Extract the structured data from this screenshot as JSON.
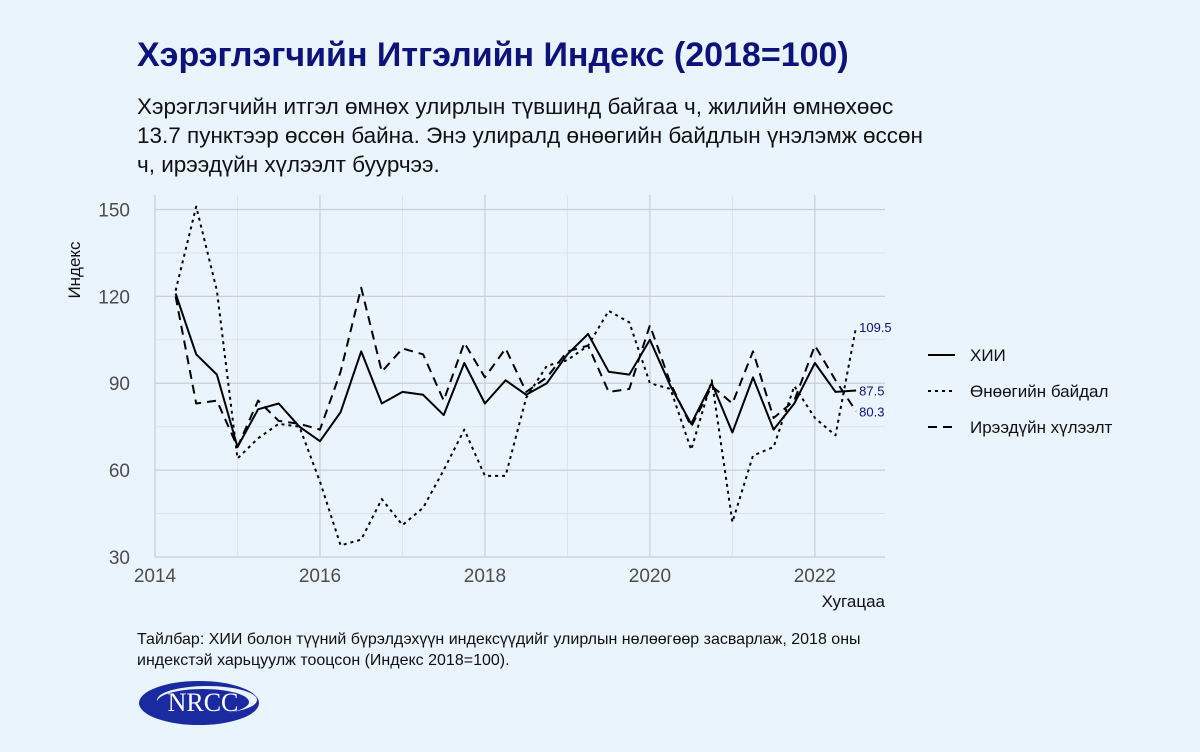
{
  "title": "Хэрэглэгчийн Итгэлийн Индекс (2018=100)",
  "subtitle": "Хэрэглэгчийн итгэл өмнөх улирлын түвшинд байгаа ч, жилийн өмнөхөөс 13.7 пунктээр өссөн байна. Энэ улиралд өнөөгийн байдлын үнэлэмж өссөн ч, ирээдүйн хүлээлт буурчээ.",
  "caption": "Тайлбар: ХИИ болон түүний бүрэлдэхүүн индексүүдийг улирлын нөлөөгөөр засварлаж, 2018 оны индекстэй харьцуулж тооцсон (Индекс 2018=100).",
  "logo_text": "NRCC",
  "chart_data": {
    "type": "line",
    "xlabel": "Хугацаа",
    "ylabel": "Индекс",
    "xlim": [
      2014,
      2022.85
    ],
    "ylim": [
      30,
      155
    ],
    "x_ticks": [
      2014,
      2016,
      2018,
      2020,
      2022
    ],
    "y_ticks": [
      30,
      60,
      90,
      120,
      150
    ],
    "grid": true,
    "legend_position": "right",
    "x": [
      2014.25,
      2014.5,
      2014.75,
      2015.0,
      2015.25,
      2015.5,
      2015.75,
      2016.0,
      2016.25,
      2016.5,
      2016.75,
      2017.0,
      2017.25,
      2017.5,
      2017.75,
      2018.0,
      2018.25,
      2018.5,
      2018.75,
      2019.0,
      2019.25,
      2019.5,
      2019.75,
      2020.0,
      2020.25,
      2020.5,
      2020.75,
      2021.0,
      2021.25,
      2021.5,
      2021.75,
      2022.0,
      2022.25,
      2022.5
    ],
    "series": [
      {
        "name": "ХИИ",
        "dash": "solid",
        "end_label": "87.5",
        "values": [
          121,
          100,
          93,
          68,
          81,
          83,
          75,
          70,
          80,
          101,
          83,
          87,
          86,
          79,
          97,
          83,
          91,
          86,
          90,
          100,
          107,
          94,
          93,
          105,
          89,
          76,
          90,
          73,
          92,
          74,
          83,
          97,
          87,
          87.5
        ]
      },
      {
        "name": "Өнөөгийн байдал",
        "dash": "dotted",
        "end_label": "109.5",
        "values": [
          122,
          151,
          122,
          64,
          71,
          76,
          75,
          56,
          34,
          36,
          50,
          41,
          47,
          60,
          74,
          58,
          58,
          85,
          96,
          98,
          103,
          115,
          111,
          90,
          88,
          67,
          91,
          42,
          65,
          68,
          89,
          78,
          72,
          109.5
        ]
      },
      {
        "name": "Ирээдүйн хүлээлт",
        "dash": "dashed",
        "end_label": "80.3",
        "values": [
          120,
          83,
          84,
          68,
          84,
          77,
          76,
          74,
          94,
          123,
          94,
          102,
          100,
          84,
          104,
          92,
          102,
          87,
          92,
          101,
          103,
          87,
          88,
          110,
          90,
          75,
          89,
          83,
          101,
          78,
          84,
          103,
          91,
          80.3
        ]
      }
    ]
  }
}
